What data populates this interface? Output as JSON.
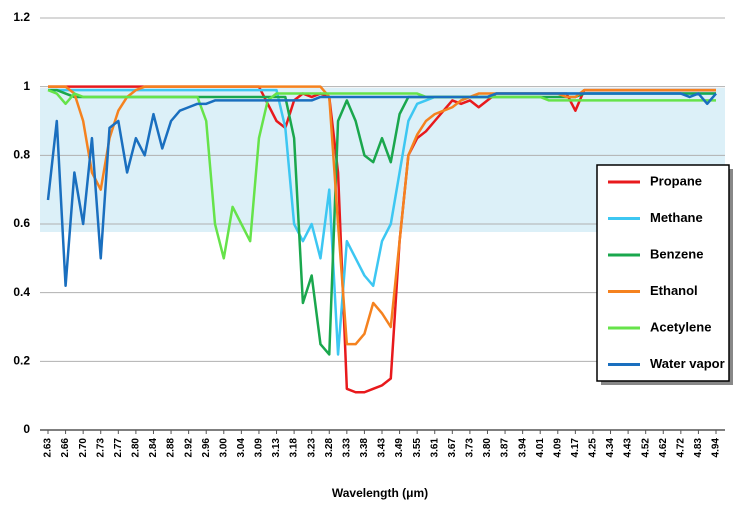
{
  "chart_data": {
    "type": "line",
    "x_label": "Wavelength (μm)",
    "categories": [
      "2.63",
      null,
      "2.66",
      null,
      "2.70",
      null,
      "2.73",
      null,
      "2.77",
      null,
      "2.80",
      null,
      "2.84",
      null,
      "2.88",
      null,
      "2.92",
      null,
      "2.96",
      null,
      "3.00",
      null,
      "3.04",
      null,
      "3.09",
      null,
      "3.13",
      null,
      "3.18",
      null,
      "3.23",
      null,
      "3.28",
      null,
      "3.33",
      null,
      "3.38",
      null,
      "3.43",
      null,
      "3.49",
      null,
      "3.55",
      null,
      "3.61",
      null,
      "3.67",
      null,
      "3.73",
      null,
      "3.80",
      null,
      "3.87",
      null,
      "3.94",
      null,
      "4.01",
      null,
      "4.09",
      null,
      "4.17",
      null,
      "4.25",
      null,
      "4.34",
      null,
      "4.43",
      null,
      "4.52",
      null,
      "4.62",
      null,
      "4.72",
      null,
      "4.83",
      null,
      "4.94"
    ],
    "series": [
      {
        "name": "Propane",
        "color": "#e8191c",
        "values": [
          1,
          1,
          1,
          1,
          1,
          1,
          1,
          1,
          1,
          1,
          1,
          1,
          1,
          1,
          1,
          1,
          1,
          1,
          1,
          1,
          1,
          1,
          1,
          1,
          1,
          0.95,
          0.9,
          0.88,
          0.96,
          0.98,
          0.97,
          0.98,
          0.97,
          0.75,
          0.12,
          0.11,
          0.11,
          0.12,
          0.13,
          0.15,
          0.55,
          0.8,
          0.85,
          0.87,
          0.9,
          0.93,
          0.96,
          0.95,
          0.96,
          0.94,
          0.96,
          0.98,
          0.98,
          0.98,
          0.98,
          0.98,
          0.98,
          0.98,
          0.98,
          0.98,
          0.93,
          0.99,
          0.99,
          0.99,
          0.99,
          0.99,
          0.99,
          0.99,
          0.99,
          0.99,
          0.99,
          0.99,
          0.99,
          0.99,
          0.99,
          0.99,
          0.99
        ]
      },
      {
        "name": "Methane",
        "color": "#3dc7f2",
        "values": [
          0.99,
          0.99,
          0.99,
          0.99,
          0.99,
          0.99,
          0.99,
          0.99,
          0.99,
          0.99,
          0.99,
          0.99,
          0.99,
          0.99,
          0.99,
          0.99,
          0.99,
          0.99,
          0.99,
          0.99,
          0.99,
          0.99,
          0.99,
          0.99,
          0.99,
          0.99,
          0.99,
          0.88,
          0.6,
          0.55,
          0.6,
          0.5,
          0.7,
          0.22,
          0.55,
          0.5,
          0.45,
          0.42,
          0.55,
          0.6,
          0.75,
          0.9,
          0.95,
          0.96,
          0.97,
          0.97,
          0.97,
          0.97,
          0.97,
          0.97,
          0.97,
          0.98,
          0.98,
          0.98,
          0.98,
          0.98,
          0.98,
          0.98,
          0.98,
          0.98,
          0.98,
          0.98,
          0.98,
          0.98,
          0.98,
          0.98,
          0.98,
          0.98,
          0.98,
          0.98,
          0.98,
          0.98,
          0.98,
          0.98,
          0.98,
          0.98,
          0.98
        ]
      },
      {
        "name": "Benzene",
        "color": "#1aa74d",
        "values": [
          0.99,
          0.99,
          0.98,
          0.97,
          0.97,
          0.97,
          0.97,
          0.97,
          0.97,
          0.97,
          0.97,
          0.97,
          0.97,
          0.97,
          0.97,
          0.97,
          0.97,
          0.97,
          0.97,
          0.97,
          0.97,
          0.97,
          0.97,
          0.97,
          0.97,
          0.97,
          0.97,
          0.97,
          0.85,
          0.37,
          0.45,
          0.25,
          0.22,
          0.9,
          0.96,
          0.9,
          0.8,
          0.78,
          0.85,
          0.78,
          0.92,
          0.97,
          0.97,
          0.97,
          0.97,
          0.97,
          0.97,
          0.97,
          0.97,
          0.97,
          0.97,
          0.97,
          0.97,
          0.97,
          0.97,
          0.97,
          0.97,
          0.97,
          0.97,
          0.97,
          0.97,
          0.98,
          0.98,
          0.98,
          0.98,
          0.98,
          0.98,
          0.98,
          0.98,
          0.98,
          0.98,
          0.98,
          0.98,
          0.98,
          0.98,
          0.98,
          0.98
        ]
      },
      {
        "name": "Ethanol",
        "color": "#f5821f",
        "values": [
          1,
          1,
          1,
          0.98,
          0.9,
          0.75,
          0.7,
          0.85,
          0.93,
          0.97,
          0.99,
          1,
          1,
          1,
          1,
          1,
          1,
          1,
          1,
          1,
          1,
          1,
          1,
          1,
          1,
          1,
          1,
          1,
          1,
          1,
          1,
          1,
          0.97,
          0.6,
          0.25,
          0.25,
          0.28,
          0.37,
          0.34,
          0.3,
          0.55,
          0.8,
          0.86,
          0.9,
          0.92,
          0.93,
          0.94,
          0.96,
          0.97,
          0.98,
          0.98,
          0.98,
          0.98,
          0.98,
          0.98,
          0.98,
          0.98,
          0.98,
          0.98,
          0.97,
          0.97,
          0.99,
          0.99,
          0.99,
          0.99,
          0.99,
          0.99,
          0.99,
          0.99,
          0.99,
          0.99,
          0.99,
          0.99,
          0.99,
          0.99,
          0.99,
          0.99
        ]
      },
      {
        "name": "Acetylene",
        "color": "#66e34a",
        "values": [
          0.99,
          0.98,
          0.95,
          0.98,
          0.97,
          0.97,
          0.97,
          0.97,
          0.97,
          0.97,
          0.97,
          0.97,
          0.97,
          0.97,
          0.97,
          0.97,
          0.97,
          0.97,
          0.9,
          0.6,
          0.5,
          0.65,
          0.6,
          0.55,
          0.85,
          0.96,
          0.98,
          0.98,
          0.98,
          0.98,
          0.98,
          0.98,
          0.98,
          0.98,
          0.98,
          0.98,
          0.98,
          0.98,
          0.98,
          0.98,
          0.98,
          0.98,
          0.98,
          0.97,
          0.97,
          0.97,
          0.97,
          0.97,
          0.97,
          0.97,
          0.97,
          0.97,
          0.97,
          0.97,
          0.97,
          0.97,
          0.97,
          0.96,
          0.96,
          0.96,
          0.96,
          0.96,
          0.96,
          0.96,
          0.96,
          0.96,
          0.96,
          0.96,
          0.96,
          0.96,
          0.96,
          0.96,
          0.96,
          0.96,
          0.96,
          0.96,
          0.96
        ]
      },
      {
        "name": "Water vapor",
        "color": "#1a6fbf",
        "values": [
          0.67,
          0.9,
          0.42,
          0.75,
          0.6,
          0.85,
          0.5,
          0.88,
          0.9,
          0.75,
          0.85,
          0.8,
          0.92,
          0.82,
          0.9,
          0.93,
          0.94,
          0.95,
          0.95,
          0.96,
          0.96,
          0.96,
          0.96,
          0.96,
          0.96,
          0.96,
          0.96,
          0.96,
          0.96,
          0.96,
          0.96,
          0.97,
          0.97,
          0.97,
          0.97,
          0.97,
          0.97,
          0.97,
          0.97,
          0.97,
          0.97,
          0.97,
          0.97,
          0.97,
          0.97,
          0.97,
          0.97,
          0.97,
          0.97,
          0.97,
          0.97,
          0.98,
          0.98,
          0.98,
          0.98,
          0.98,
          0.98,
          0.98,
          0.98,
          0.98,
          0.98,
          0.98,
          0.98,
          0.98,
          0.98,
          0.98,
          0.98,
          0.98,
          0.98,
          0.98,
          0.98,
          0.98,
          0.98,
          0.97,
          0.98,
          0.95,
          0.98
        ]
      }
    ],
    "ylim": [
      0,
      1.2
    ],
    "yticks": [
      0,
      0.2,
      0.4,
      0.6,
      0.8,
      1,
      1.2
    ],
    "grid": true,
    "legend": "right"
  }
}
